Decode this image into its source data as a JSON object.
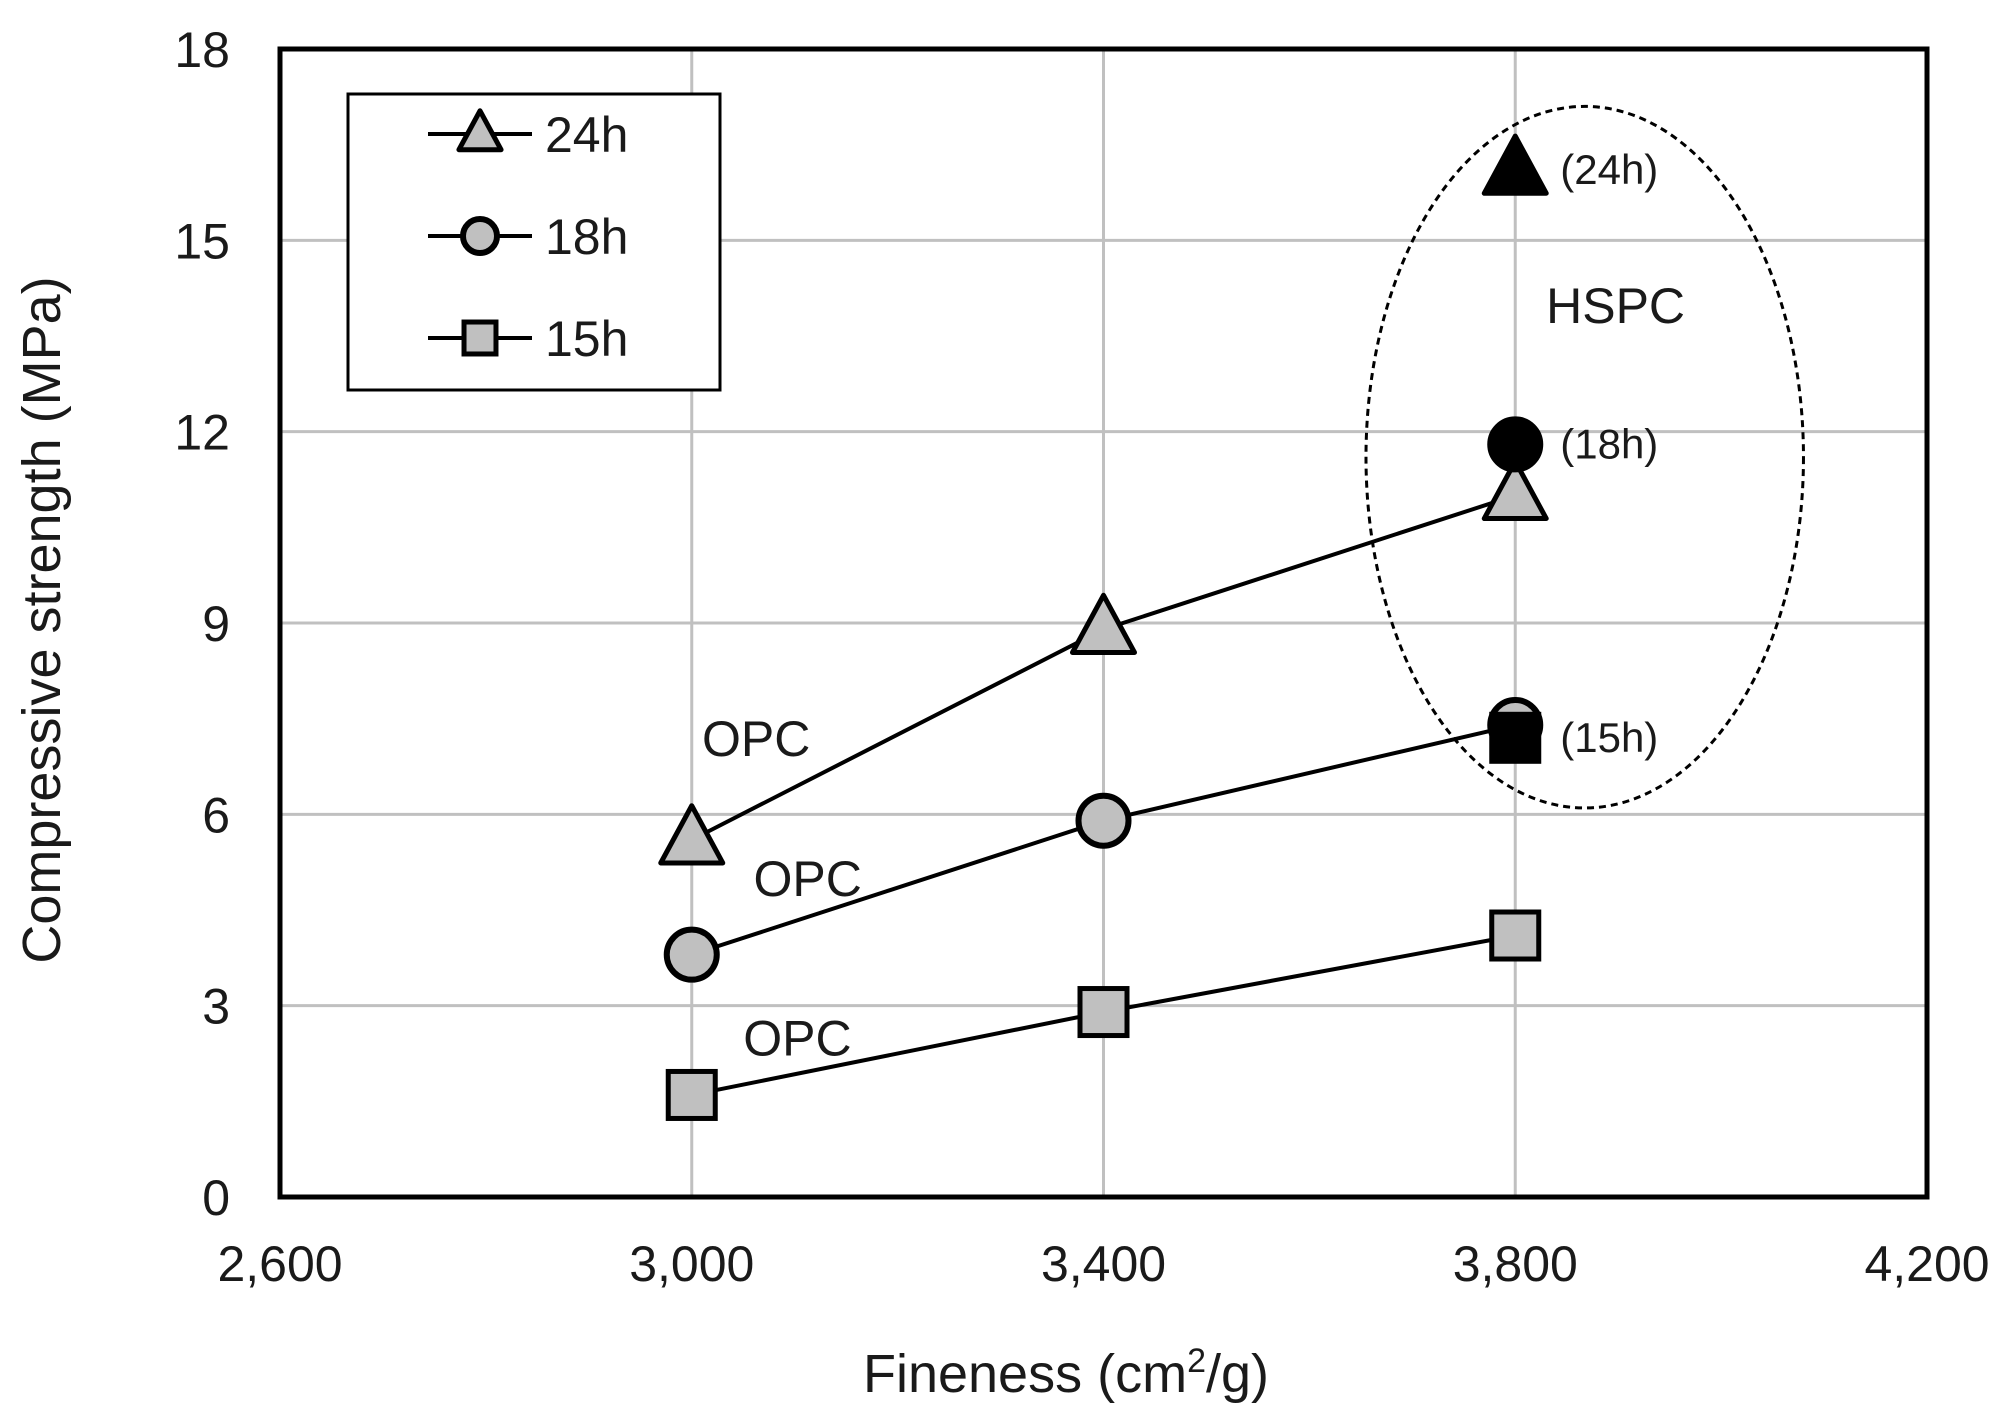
{
  "chart_data": {
    "type": "line",
    "xlabel": "Fineness (cm",
    "xlabel_sup": "2",
    "xlabel_end": "/g)",
    "ylabel": "Compressive strength (MPa)",
    "xlim": [
      2600,
      4200
    ],
    "ylim": [
      0,
      18
    ],
    "x_ticks": [
      2600,
      3000,
      3400,
      3800,
      4200
    ],
    "x_tick_labels": [
      "2,600",
      "3,000",
      "3,400",
      "3,800",
      "4,200"
    ],
    "y_ticks": [
      0,
      3,
      6,
      9,
      12,
      15,
      18
    ],
    "y_tick_labels": [
      "0",
      "3",
      "6",
      "9",
      "12",
      "15",
      "18"
    ],
    "grid": true,
    "legend_position": "top-left",
    "x": [
      3000,
      3400,
      3800
    ],
    "series": [
      {
        "name": "24h",
        "marker": "triangle",
        "fill": "#c0c0c0",
        "values": [
          5.6,
          8.9,
          11.0
        ]
      },
      {
        "name": "18h",
        "marker": "circle",
        "fill": "#c0c0c0",
        "values": [
          3.8,
          5.9,
          7.4
        ]
      },
      {
        "name": "15h",
        "marker": "square",
        "fill": "#c0c0c0",
        "values": [
          1.6,
          2.9,
          4.1
        ]
      }
    ],
    "hspc_points": [
      {
        "label": "(24h)",
        "marker": "triangle",
        "x": 3800,
        "y": 16.1
      },
      {
        "label": "(18h)",
        "marker": "circle",
        "x": 3800,
        "y": 11.8
      },
      {
        "label": "(15h)",
        "marker": "square",
        "x": 3800,
        "y": 7.2
      }
    ],
    "hspc_region": {
      "label": "HSPC",
      "x_range": [
        3655,
        4080
      ],
      "y_range": [
        6.1,
        17.1
      ]
    },
    "series_annotations": [
      {
        "text": "OPC",
        "x": 3010,
        "y": 7.2
      },
      {
        "text": "OPC",
        "x": 3060,
        "y": 5.0
      },
      {
        "text": "OPC",
        "x": 3050,
        "y": 2.5
      }
    ],
    "colors": {
      "axis": "#000000",
      "grid": "#c0c0c0",
      "marker_fill": "#c0c0c0",
      "hspc_fill": "#000000"
    }
  }
}
